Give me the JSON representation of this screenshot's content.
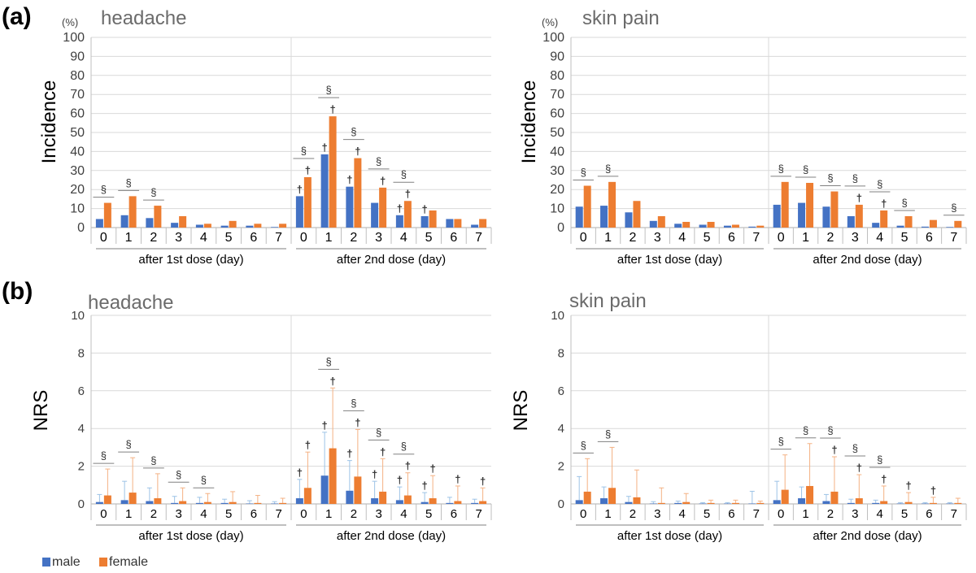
{
  "panel_labels": {
    "a": "(a)",
    "b": "(b)"
  },
  "legend": {
    "male": "male",
    "female": "female"
  },
  "colors": {
    "male": "#4472c4",
    "female": "#ed7d31",
    "male_err": "#9dc3e6",
    "female_err": "#f4b183",
    "grid": "#d9d9d9",
    "axis": "#bfbfbf",
    "sig": "#333333"
  },
  "chart_data": [
    {
      "type": "bar",
      "title": "headache",
      "ylabel": "Incidence",
      "yunit": "(%)",
      "ylim": [
        0,
        100
      ],
      "yticks": [
        0,
        10,
        20,
        30,
        40,
        50,
        60,
        70,
        80,
        90,
        100
      ],
      "groups": [
        "after 1st dose (day)",
        "after 2nd dose (day)"
      ],
      "categories": [
        "0",
        "1",
        "2",
        "3",
        "4",
        "5",
        "6",
        "7",
        "0",
        "1",
        "2",
        "3",
        "4",
        "5",
        "6",
        "7"
      ],
      "series": [
        {
          "name": "male",
          "values": [
            4.5,
            6.5,
            5,
            2.5,
            1.5,
            1,
            1,
            0.3,
            16.5,
            38.5,
            21.5,
            13,
            6.5,
            6,
            4.5,
            1.5
          ]
        },
        {
          "name": "female",
          "values": [
            13,
            16.5,
            11.5,
            6,
            2,
            3.5,
            2,
            2,
            26.5,
            58.5,
            36.5,
            21,
            14,
            9,
            4.5,
            4.5
          ]
        }
      ],
      "section_marks": [
        "§",
        "§",
        "§",
        "",
        "",
        "",
        "",
        "",
        "§",
        "§",
        "§",
        "§",
        "§",
        "",
        "",
        ""
      ],
      "male_dagger": [
        "",
        "",
        "",
        "",
        "",
        "",
        "",
        "",
        "†",
        "†",
        "†",
        "",
        "†",
        "†",
        "",
        ""
      ],
      "female_dagger": [
        "",
        "",
        "",
        "",
        "",
        "",
        "",
        "",
        "†",
        "†",
        "†",
        "†",
        "†",
        "",
        "",
        ""
      ]
    },
    {
      "type": "bar",
      "title": "skin pain",
      "ylabel": "Incidence",
      "yunit": "(%)",
      "ylim": [
        0,
        100
      ],
      "yticks": [
        0,
        10,
        20,
        30,
        40,
        50,
        60,
        70,
        80,
        90,
        100
      ],
      "groups": [
        "after 1st dose (day)",
        "after 2nd dose (day)"
      ],
      "categories": [
        "0",
        "1",
        "2",
        "3",
        "4",
        "5",
        "6",
        "7",
        "0",
        "1",
        "2",
        "3",
        "4",
        "5",
        "6",
        "7"
      ],
      "series": [
        {
          "name": "male",
          "values": [
            11,
            11.5,
            8,
            3.5,
            2,
            1.5,
            1,
            0.5,
            12,
            13,
            11,
            6,
            2.5,
            1,
            0.5,
            0.3
          ]
        },
        {
          "name": "female",
          "values": [
            22,
            24,
            14,
            6,
            3,
            3,
            1.5,
            1,
            24,
            23.5,
            19,
            12,
            9,
            6,
            4,
            3.5
          ]
        }
      ],
      "section_marks": [
        "§",
        "§",
        "",
        "",
        "",
        "",
        "",
        "",
        "§",
        "§",
        "§",
        "§",
        "§",
        "§",
        "",
        "§"
      ],
      "male_dagger": [
        "",
        "",
        "",
        "",
        "",
        "",
        "",
        "",
        "",
        "",
        "",
        "",
        "",
        "",
        "",
        ""
      ],
      "female_dagger": [
        "",
        "",
        "",
        "",
        "",
        "",
        "",
        "",
        "",
        "",
        "",
        "†",
        "†",
        "",
        "",
        ""
      ]
    },
    {
      "type": "bar",
      "title": "headache",
      "ylabel": "NRS",
      "ylim": [
        0,
        10
      ],
      "yticks": [
        0,
        2,
        4,
        6,
        8,
        10
      ],
      "groups": [
        "after 1st dose (day)",
        "after 2nd dose (day)"
      ],
      "categories": [
        "0",
        "1",
        "2",
        "3",
        "4",
        "5",
        "6",
        "7",
        "0",
        "1",
        "2",
        "3",
        "4",
        "5",
        "6",
        "7"
      ],
      "series": [
        {
          "name": "male",
          "values": [
            0.1,
            0.2,
            0.15,
            0.05,
            0.05,
            0.05,
            0.02,
            0.02,
            0.3,
            1.5,
            0.7,
            0.3,
            0.2,
            0.1,
            0.05,
            0.05
          ],
          "err": [
            0.4,
            1.0,
            0.7,
            0.35,
            0.3,
            0.2,
            0.15,
            0.1,
            1.0,
            2.3,
            1.6,
            0.9,
            0.7,
            0.5,
            0.3,
            0.2
          ]
        },
        {
          "name": "female",
          "values": [
            0.45,
            0.6,
            0.3,
            0.15,
            0.1,
            0.1,
            0.05,
            0.05,
            0.85,
            2.95,
            1.45,
            0.65,
            0.45,
            0.3,
            0.15,
            0.15
          ],
          "err": [
            1.4,
            1.85,
            1.3,
            0.7,
            0.45,
            0.55,
            0.4,
            0.25,
            1.9,
            3.2,
            2.5,
            1.75,
            1.2,
            1.2,
            0.8,
            0.7
          ]
        }
      ],
      "section_marks": [
        "§",
        "§",
        "§",
        "§",
        "§",
        "",
        "",
        "",
        "",
        "§",
        "§",
        "§",
        "§",
        "",
        "",
        ""
      ],
      "male_dagger": [
        "",
        "",
        "",
        "",
        "",
        "",
        "",
        "",
        "†",
        "†",
        "†",
        "†",
        "†",
        "†",
        "",
        ""
      ],
      "female_dagger": [
        "",
        "",
        "",
        "",
        "",
        "",
        "",
        "",
        "†",
        "†",
        "†",
        "†",
        "†",
        "†",
        "†",
        "†"
      ]
    },
    {
      "type": "bar",
      "title": "skin pain",
      "ylabel": "NRS",
      "ylim": [
        0,
        10
      ],
      "yticks": [
        0,
        2,
        4,
        6,
        8,
        10
      ],
      "groups": [
        "after 1st dose (day)",
        "after 2nd dose (day)"
      ],
      "categories": [
        "0",
        "1",
        "2",
        "3",
        "4",
        "5",
        "6",
        "7",
        "0",
        "1",
        "2",
        "3",
        "4",
        "5",
        "6",
        "7"
      ],
      "series": [
        {
          "name": "male",
          "values": [
            0.2,
            0.3,
            0.1,
            0.02,
            0.05,
            0.02,
            0.02,
            0.02,
            0.2,
            0.3,
            0.15,
            0.05,
            0.05,
            0.02,
            0.02,
            0.02
          ],
          "err": [
            1.25,
            0.6,
            0.3,
            0.1,
            0.1,
            0.05,
            0.05,
            0.65,
            1.0,
            0.6,
            0.35,
            0.2,
            0.15,
            0.05,
            0.05,
            0.05
          ]
        },
        {
          "name": "female",
          "values": [
            0.65,
            0.85,
            0.35,
            0.05,
            0.1,
            0.05,
            0.05,
            0.05,
            0.75,
            0.95,
            0.65,
            0.3,
            0.15,
            0.1,
            0.05,
            0.05
          ],
          "err": [
            1.75,
            2.15,
            1.45,
            0.8,
            0.45,
            0.15,
            0.15,
            0.1,
            1.85,
            2.25,
            1.85,
            1.25,
            0.8,
            0.5,
            0.3,
            0.25
          ]
        }
      ],
      "section_marks": [
        "§",
        "§",
        "",
        "",
        "",
        "",
        "",
        "",
        "§",
        "§",
        "§",
        "§",
        "§",
        "",
        "",
        ""
      ],
      "male_dagger": [
        "",
        "",
        "",
        "",
        "",
        "",
        "",
        "",
        "",
        "",
        "",
        "",
        "",
        "",
        "",
        ""
      ],
      "female_dagger": [
        "",
        "",
        "",
        "",
        "",
        "",
        "",
        "",
        "",
        "",
        "†",
        "†",
        "†",
        "†",
        "†",
        ""
      ]
    }
  ]
}
